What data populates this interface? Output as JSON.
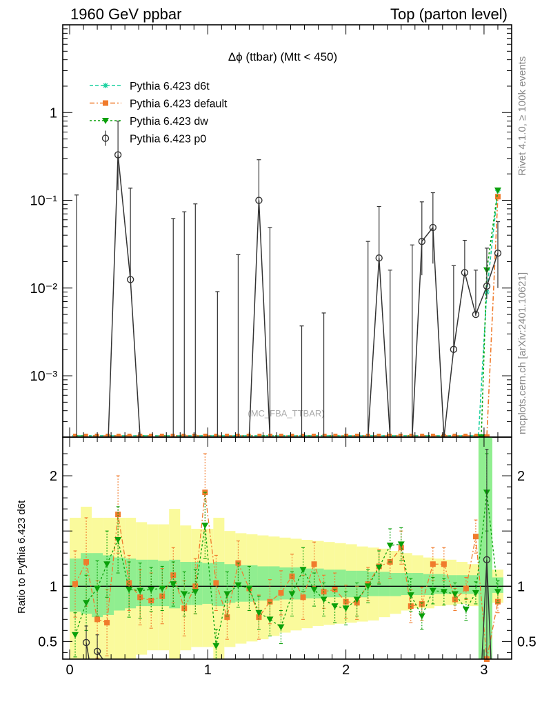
{
  "header": {
    "left_title": "1960 GeV ppbar",
    "right_title": "Top (parton level)"
  },
  "side_text": {
    "rivet": "Rivet 4.1.0, ≥ 100k events",
    "mcplots": "mcplots.cern.ch [arXiv:2401.10621]"
  },
  "chart_data": [
    {
      "type": "line",
      "panel": "main",
      "title": "Δϕ (ttbar) (Mtt < 450)",
      "watermark": "(MC_FBA_TTBAR)",
      "yscale": "log",
      "xlim": [
        -0.05,
        3.2
      ],
      "ylim": [
        0.0002,
        10
      ],
      "y_tick_labels": [
        "1",
        "10⁻¹",
        "10⁻²",
        "10⁻³"
      ],
      "y_tick_values": [
        1,
        0.1,
        0.01,
        0.001
      ],
      "legend_position": "top-left",
      "series": [
        {
          "name": "Pythia 6.423 d6t",
          "color": "#1ad1a0",
          "marker": "star",
          "dash": "dashed",
          "x": [
            3.02,
            3.1
          ],
          "y": [
            0.009,
            0.13
          ]
        },
        {
          "name": "Pythia 6.423 default",
          "color": "#f07b2c",
          "marker": "square",
          "dash": "dashdot",
          "x": [
            3.02,
            3.1
          ],
          "y": [
            0.0002,
            0.11
          ]
        },
        {
          "name": "Pythia 6.423 dw",
          "color": "#0aa00a",
          "marker": "triangle-down",
          "dash": "dotted",
          "x": [
            2.98,
            3.02,
            3.1
          ],
          "y": [
            0.0002,
            0.016,
            0.13
          ]
        },
        {
          "name": "Pythia 6.423 p0",
          "color": "#333333",
          "marker": "open-circle",
          "dash": "solid",
          "x": [
            0.35,
            0.44,
            1.37,
            2.24,
            2.55,
            2.63,
            2.78,
            2.86,
            2.94,
            3.02,
            3.1
          ],
          "y": [
            0.33,
            0.0125,
            0.1,
            0.022,
            0.034,
            0.049,
            0.002,
            0.015,
            0.005,
            0.0105,
            0.025
          ],
          "yerr_up": [
            0.47,
            0.125,
            0.19,
            0.063,
            0.062,
            0.073,
            0.016,
            0.02,
            0.011,
            0.018,
            0.032
          ],
          "yerr_down": [
            0.2,
            0.0002,
            0.008,
            0.0002,
            0.02,
            0.03,
            0.0002,
            0.0002,
            0.0002,
            0.003,
            0.015
          ],
          "upper_limits_x": [
            0.05,
            0.75,
            0.83,
            0.91,
            1.07,
            1.22,
            1.45,
            1.68,
            1.84,
            2.16,
            2.32,
            2.48
          ],
          "upper_limits_y": [
            0.115,
            0.062,
            0.074,
            0.091,
            0.0091,
            0.024,
            0.049,
            0.0037,
            0.0052,
            0.034,
            0.016,
            0.031
          ]
        }
      ]
    },
    {
      "type": "line",
      "panel": "ratio",
      "ylabel": "Ratio to Pythia 6.423 d6t",
      "xlim": [
        -0.05,
        3.2
      ],
      "ylim": [
        0.34,
        2.35
      ],
      "x_tick_labels": [
        "0",
        "1",
        "2",
        "3"
      ],
      "x_tick_values": [
        0,
        1,
        2,
        3
      ],
      "y_tick_labels": [
        "0.5",
        "1",
        "2"
      ],
      "y_tick_values": [
        0.5,
        1,
        2
      ],
      "band_x_edges": [
        0,
        0.08,
        0.16,
        0.24,
        0.32,
        0.4,
        0.48,
        0.56,
        0.64,
        0.72,
        0.8,
        0.88,
        0.96,
        1.04,
        1.12,
        1.2,
        1.28,
        1.36,
        1.44,
        1.52,
        1.6,
        1.68,
        1.76,
        1.84,
        1.92,
        2.0,
        2.08,
        2.16,
        2.24,
        2.32,
        2.4,
        2.48,
        2.56,
        2.64,
        2.72,
        2.8,
        2.88,
        2.96,
        3.06,
        3.14
      ],
      "yellow_band_low": [
        0.34,
        0.34,
        0.34,
        0.34,
        0.34,
        0.34,
        0.38,
        0.42,
        0.42,
        0.34,
        0.42,
        0.45,
        0.45,
        0.34,
        0.45,
        0.48,
        0.5,
        0.52,
        0.55,
        0.58,
        0.6,
        0.62,
        0.64,
        0.65,
        0.66,
        0.67,
        0.68,
        0.69,
        0.72,
        0.75,
        0.78,
        0.8,
        0.8,
        0.82,
        0.83,
        0.84,
        0.82,
        0.34,
        0.85
      ],
      "yellow_band_high": [
        1.62,
        1.72,
        1.62,
        1.62,
        1.62,
        1.62,
        1.58,
        1.56,
        1.56,
        1.7,
        1.55,
        1.52,
        1.52,
        1.62,
        1.5,
        1.48,
        1.47,
        1.46,
        1.45,
        1.44,
        1.43,
        1.42,
        1.41,
        1.4,
        1.39,
        1.38,
        1.36,
        1.35,
        1.34,
        1.32,
        1.3,
        1.28,
        1.26,
        1.25,
        1.24,
        1.22,
        1.2,
        2.35,
        1.15
      ],
      "green_band_low": [
        0.77,
        0.75,
        0.72,
        0.74,
        0.78,
        0.8,
        0.82,
        0.82,
        0.82,
        0.8,
        0.83,
        0.83,
        0.84,
        0.82,
        0.85,
        0.86,
        0.86,
        0.87,
        0.87,
        0.88,
        0.88,
        0.89,
        0.89,
        0.9,
        0.9,
        0.9,
        0.9,
        0.91,
        0.91,
        0.91,
        0.92,
        0.92,
        0.92,
        0.93,
        0.93,
        0.93,
        0.93,
        0.34,
        0.94
      ],
      "green_band_high": [
        1.25,
        1.3,
        1.3,
        1.28,
        1.26,
        1.25,
        1.24,
        1.24,
        1.23,
        1.24,
        1.22,
        1.22,
        1.21,
        1.22,
        1.2,
        1.19,
        1.19,
        1.18,
        1.18,
        1.17,
        1.17,
        1.16,
        1.16,
        1.15,
        1.15,
        1.14,
        1.14,
        1.13,
        1.13,
        1.12,
        1.12,
        1.12,
        1.11,
        1.11,
        1.1,
        1.1,
        1.1,
        2.35,
        1.08
      ],
      "series": [
        {
          "name": "Pythia 6.423 default",
          "color": "#f07b2c",
          "marker": "square",
          "dash": "dashdot",
          "x": [
            0.04,
            0.12,
            0.2,
            0.27,
            0.35,
            0.43,
            0.51,
            0.59,
            0.67,
            0.75,
            0.83,
            0.91,
            0.98,
            1.06,
            1.14,
            1.22,
            1.3,
            1.37,
            1.45,
            1.53,
            1.61,
            1.69,
            1.77,
            1.84,
            1.92,
            2.0,
            2.08,
            2.16,
            2.24,
            2.32,
            2.4,
            2.47,
            2.55,
            2.63,
            2.71,
            2.79,
            2.87,
            2.94,
            3.02,
            3.1
          ],
          "y": [
            1.02,
            1.22,
            0.7,
            0.67,
            1.65,
            1.03,
            0.9,
            0.87,
            0.91,
            1.1,
            0.8,
            1.0,
            1.85,
            1.03,
            0.72,
            1.21,
            0.98,
            0.72,
            0.86,
            0.94,
            1.09,
            0.9,
            1.2,
            0.95,
            0.97,
            0.86,
            0.85,
            1.02,
            1.18,
            1.22,
            1.35,
            0.82,
            0.84,
            1.2,
            1.2,
            0.88,
            0.98,
            1.45,
            0.34,
            0.86
          ],
          "yerr": [
            0.3,
            0.4,
            0.35,
            0.3,
            0.35,
            0.25,
            0.25,
            0.25,
            0.25,
            0.25,
            0.25,
            0.25,
            0.35,
            0.25,
            0.2,
            0.2,
            0.2,
            0.2,
            0.2,
            0.2,
            0.2,
            0.2,
            0.2,
            0.15,
            0.15,
            0.15,
            0.15,
            0.15,
            0.15,
            0.15,
            0.15,
            0.15,
            0.15,
            0.15,
            0.15,
            0.1,
            0.1,
            0.15,
            0.0,
            0.1
          ]
        },
        {
          "name": "Pythia 6.423 dw",
          "color": "#0aa00a",
          "marker": "triangle-down",
          "dash": "dotted",
          "x": [
            0.04,
            0.12,
            0.2,
            0.27,
            0.35,
            0.43,
            0.51,
            0.59,
            0.67,
            0.75,
            0.83,
            0.91,
            0.98,
            1.06,
            1.14,
            1.22,
            1.3,
            1.37,
            1.45,
            1.53,
            1.61,
            1.69,
            1.77,
            1.84,
            1.92,
            2.0,
            2.08,
            2.16,
            2.24,
            2.32,
            2.4,
            2.47,
            2.55,
            2.63,
            2.71,
            2.79,
            2.87,
            2.94,
            3.02,
            3.1
          ],
          "y": [
            0.56,
            0.85,
            0.98,
            1.2,
            1.42,
            0.97,
            0.96,
            0.97,
            0.98,
            1.02,
            0.93,
            0.95,
            1.55,
            0.46,
            0.93,
            1.01,
            0.98,
            0.76,
            0.7,
            0.63,
            0.93,
            1.15,
            0.97,
            0.88,
            0.82,
            0.8,
            0.88,
            1.0,
            1.17,
            1.37,
            1.38,
            0.92,
            0.73,
            0.96,
            0.95,
            0.93,
            0.79,
            0.94,
            1.85,
            0.95
          ],
          "yerr": [
            0.2,
            0.25,
            0.25,
            0.3,
            0.3,
            0.25,
            0.25,
            0.2,
            0.2,
            0.2,
            0.2,
            0.2,
            0.3,
            0.15,
            0.2,
            0.2,
            0.2,
            0.15,
            0.15,
            0.15,
            0.2,
            0.2,
            0.15,
            0.15,
            0.15,
            0.15,
            0.15,
            0.15,
            0.15,
            0.15,
            0.15,
            0.15,
            0.12,
            0.12,
            0.12,
            0.1,
            0.1,
            0.1,
            0.35,
            0.1
          ]
        },
        {
          "name": "Pythia 6.423 p0",
          "color": "#333333",
          "marker": "open-circle",
          "dash": "solid",
          "x": [
            0.12,
            0.2,
            3.02
          ],
          "y": [
            0.49,
            0.41,
            1.24
          ],
          "yerr": [
            0.15,
            0.15,
            1.0
          ]
        }
      ]
    }
  ]
}
